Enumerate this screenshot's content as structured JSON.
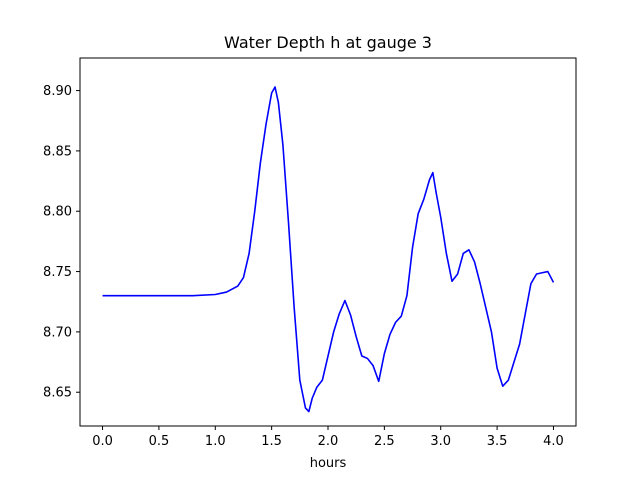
{
  "chart_data": {
    "type": "line",
    "title": "Water Depth h at gauge 3",
    "xlabel": "hours",
    "ylabel": "",
    "xlim": [
      -0.2,
      4.2
    ],
    "ylim": [
      8.622,
      8.927
    ],
    "xticks": [
      0.0,
      0.5,
      1.0,
      1.5,
      2.0,
      2.5,
      3.0,
      3.5,
      4.0
    ],
    "xtick_labels": [
      "0.0",
      "0.5",
      "1.0",
      "1.5",
      "2.0",
      "2.5",
      "3.0",
      "3.5",
      "4.0"
    ],
    "yticks": [
      8.65,
      8.7,
      8.75,
      8.8,
      8.85,
      8.9
    ],
    "ytick_labels": [
      "8.65",
      "8.70",
      "8.75",
      "8.80",
      "8.85",
      "8.90"
    ],
    "grid": false,
    "series": [
      {
        "color": "#0000ff",
        "x": [
          0.0,
          0.2,
          0.4,
          0.6,
          0.8,
          1.0,
          1.1,
          1.2,
          1.25,
          1.3,
          1.35,
          1.4,
          1.45,
          1.5,
          1.53,
          1.56,
          1.6,
          1.65,
          1.7,
          1.75,
          1.8,
          1.83,
          1.86,
          1.9,
          1.95,
          2.0,
          2.05,
          2.1,
          2.15,
          2.2,
          2.25,
          2.3,
          2.35,
          2.4,
          2.45,
          2.5,
          2.55,
          2.6,
          2.65,
          2.7,
          2.75,
          2.8,
          2.85,
          2.9,
          2.93,
          2.96,
          3.0,
          3.05,
          3.1,
          3.15,
          3.2,
          3.25,
          3.3,
          3.35,
          3.4,
          3.45,
          3.5,
          3.55,
          3.6,
          3.65,
          3.7,
          3.75,
          3.8,
          3.85,
          3.9,
          3.95,
          4.0
        ],
        "y": [
          8.73,
          8.73,
          8.73,
          8.73,
          8.73,
          8.731,
          8.733,
          8.738,
          8.745,
          8.765,
          8.8,
          8.84,
          8.872,
          8.898,
          8.903,
          8.89,
          8.855,
          8.79,
          8.72,
          8.66,
          8.637,
          8.634,
          8.645,
          8.654,
          8.66,
          8.68,
          8.7,
          8.715,
          8.726,
          8.714,
          8.696,
          8.68,
          8.678,
          8.672,
          8.659,
          8.682,
          8.698,
          8.708,
          8.713,
          8.73,
          8.77,
          8.798,
          8.81,
          8.826,
          8.832,
          8.815,
          8.795,
          8.765,
          8.742,
          8.748,
          8.765,
          8.768,
          8.758,
          8.74,
          8.72,
          8.7,
          8.67,
          8.655,
          8.66,
          8.675,
          8.69,
          8.715,
          8.74,
          8.748,
          8.749,
          8.75,
          8.741
        ]
      }
    ]
  }
}
